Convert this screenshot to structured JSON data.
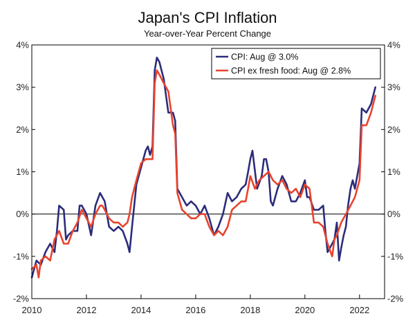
{
  "chart_data": {
    "type": "line",
    "title": "Japan's CPI Inflation",
    "subtitle": "Year-over-Year Percent Change",
    "xlabel": "",
    "ylabel": "",
    "xlim": [
      2010.0,
      2022.917
    ],
    "ylim": [
      -2,
      4
    ],
    "x_ticks": [
      2010,
      2012,
      2014,
      2016,
      2018,
      2020,
      2022
    ],
    "x_tick_labels": [
      "2010",
      "2012",
      "2014",
      "2016",
      "2018",
      "2020",
      "2022"
    ],
    "y_ticks": [
      -2,
      -1,
      0,
      1,
      2,
      3,
      4
    ],
    "y_tick_labels_left": [
      "-2%",
      "-1%",
      "0%",
      "1%",
      "2%",
      "3%",
      "4%"
    ],
    "y_tick_labels_right": [
      "-2%",
      "-1%",
      "0%",
      "1%",
      "2%",
      "3%",
      "4%"
    ],
    "zero_line": true,
    "legend_position": "top-right",
    "series": [
      {
        "name": "CPI: Aug @ 3.0%",
        "color": "#2b2c7a",
        "points": [
          [
            2010.0,
            -1.5
          ],
          [
            2010.17,
            -1.1
          ],
          [
            2010.33,
            -1.2
          ],
          [
            2010.5,
            -0.9
          ],
          [
            2010.67,
            -0.7
          ],
          [
            2010.83,
            -0.9
          ],
          [
            2010.92,
            -0.4
          ],
          [
            2011.0,
            0.2
          ],
          [
            2011.17,
            0.1
          ],
          [
            2011.25,
            -0.6
          ],
          [
            2011.33,
            -0.5
          ],
          [
            2011.5,
            -0.4
          ],
          [
            2011.67,
            -0.4
          ],
          [
            2011.75,
            0.2
          ],
          [
            2011.83,
            0.2
          ],
          [
            2012.0,
            0.0
          ],
          [
            2012.17,
            -0.5
          ],
          [
            2012.33,
            0.2
          ],
          [
            2012.5,
            0.5
          ],
          [
            2012.67,
            0.3
          ],
          [
            2012.83,
            -0.3
          ],
          [
            2013.0,
            -0.4
          ],
          [
            2013.17,
            -0.3
          ],
          [
            2013.33,
            -0.4
          ],
          [
            2013.5,
            -0.7
          ],
          [
            2013.58,
            -0.9
          ],
          [
            2013.67,
            -0.3
          ],
          [
            2013.83,
            0.7
          ],
          [
            2014.0,
            1.1
          ],
          [
            2014.17,
            1.5
          ],
          [
            2014.25,
            1.6
          ],
          [
            2014.33,
            1.4
          ],
          [
            2014.42,
            1.6
          ],
          [
            2014.5,
            3.4
          ],
          [
            2014.58,
            3.7
          ],
          [
            2014.67,
            3.6
          ],
          [
            2014.75,
            3.4
          ],
          [
            2014.83,
            3.2
          ],
          [
            2015.0,
            2.4
          ],
          [
            2015.17,
            2.4
          ],
          [
            2015.25,
            2.2
          ],
          [
            2015.33,
            0.6
          ],
          [
            2015.5,
            0.4
          ],
          [
            2015.67,
            0.2
          ],
          [
            2015.83,
            0.3
          ],
          [
            2016.0,
            0.2
          ],
          [
            2016.17,
            0.0
          ],
          [
            2016.33,
            0.2
          ],
          [
            2016.5,
            -0.1
          ],
          [
            2016.67,
            -0.5
          ],
          [
            2016.83,
            -0.3
          ],
          [
            2017.0,
            0.0
          ],
          [
            2017.17,
            0.5
          ],
          [
            2017.33,
            0.3
          ],
          [
            2017.5,
            0.4
          ],
          [
            2017.67,
            0.6
          ],
          [
            2017.83,
            0.7
          ],
          [
            2017.92,
            1.0
          ],
          [
            2018.0,
            1.3
          ],
          [
            2018.08,
            1.5
          ],
          [
            2018.25,
            0.6
          ],
          [
            2018.42,
            0.9
          ],
          [
            2018.5,
            1.3
          ],
          [
            2018.58,
            1.3
          ],
          [
            2018.67,
            1.0
          ],
          [
            2018.75,
            0.3
          ],
          [
            2018.83,
            0.2
          ],
          [
            2019.0,
            0.6
          ],
          [
            2019.17,
            0.9
          ],
          [
            2019.33,
            0.7
          ],
          [
            2019.5,
            0.3
          ],
          [
            2019.67,
            0.3
          ],
          [
            2019.83,
            0.5
          ],
          [
            2020.0,
            0.8
          ],
          [
            2020.08,
            0.4
          ],
          [
            2020.17,
            0.4
          ],
          [
            2020.33,
            0.1
          ],
          [
            2020.5,
            0.1
          ],
          [
            2020.67,
            0.2
          ],
          [
            2020.75,
            -0.4
          ],
          [
            2020.83,
            -0.9
          ],
          [
            2021.0,
            -0.7
          ],
          [
            2021.08,
            -0.6
          ],
          [
            2021.17,
            -0.2
          ],
          [
            2021.25,
            -1.1
          ],
          [
            2021.33,
            -0.8
          ],
          [
            2021.42,
            -0.5
          ],
          [
            2021.5,
            -0.3
          ],
          [
            2021.58,
            0.2
          ],
          [
            2021.67,
            0.6
          ],
          [
            2021.75,
            0.8
          ],
          [
            2021.83,
            0.6
          ],
          [
            2022.0,
            1.2
          ],
          [
            2022.08,
            2.5
          ],
          [
            2022.25,
            2.4
          ],
          [
            2022.42,
            2.6
          ],
          [
            2022.58,
            3.0
          ]
        ]
      },
      {
        "name": "CPI ex fresh food: Aug @ 2.8%",
        "color": "#e8432d",
        "points": [
          [
            2010.0,
            -1.3
          ],
          [
            2010.17,
            -1.2
          ],
          [
            2010.25,
            -1.5
          ],
          [
            2010.33,
            -1.1
          ],
          [
            2010.5,
            -1.0
          ],
          [
            2010.67,
            -1.1
          ],
          [
            2010.83,
            -0.6
          ],
          [
            2011.0,
            -0.4
          ],
          [
            2011.17,
            -0.7
          ],
          [
            2011.33,
            -0.7
          ],
          [
            2011.5,
            -0.4
          ],
          [
            2011.67,
            -0.2
          ],
          [
            2011.83,
            0.1
          ],
          [
            2012.0,
            -0.1
          ],
          [
            2012.17,
            -0.3
          ],
          [
            2012.33,
            0.0
          ],
          [
            2012.5,
            0.2
          ],
          [
            2012.58,
            0.2
          ],
          [
            2012.67,
            0.1
          ],
          [
            2012.83,
            -0.1
          ],
          [
            2013.0,
            -0.2
          ],
          [
            2013.17,
            -0.2
          ],
          [
            2013.33,
            -0.3
          ],
          [
            2013.5,
            -0.2
          ],
          [
            2013.58,
            0.0
          ],
          [
            2013.67,
            0.4
          ],
          [
            2013.83,
            0.8
          ],
          [
            2014.0,
            1.2
          ],
          [
            2014.17,
            1.3
          ],
          [
            2014.25,
            1.3
          ],
          [
            2014.42,
            1.3
          ],
          [
            2014.5,
            3.1
          ],
          [
            2014.58,
            3.4
          ],
          [
            2014.67,
            3.3
          ],
          [
            2014.83,
            3.1
          ],
          [
            2015.0,
            2.9
          ],
          [
            2015.17,
            2.1
          ],
          [
            2015.25,
            1.9
          ],
          [
            2015.33,
            0.5
          ],
          [
            2015.5,
            0.1
          ],
          [
            2015.67,
            0.0
          ],
          [
            2015.83,
            -0.1
          ],
          [
            2016.0,
            -0.1
          ],
          [
            2016.17,
            0.0
          ],
          [
            2016.33,
            0.0
          ],
          [
            2016.5,
            -0.3
          ],
          [
            2016.67,
            -0.5
          ],
          [
            2016.83,
            -0.4
          ],
          [
            2017.0,
            -0.5
          ],
          [
            2017.17,
            -0.3
          ],
          [
            2017.33,
            0.1
          ],
          [
            2017.5,
            0.2
          ],
          [
            2017.67,
            0.3
          ],
          [
            2017.83,
            0.3
          ],
          [
            2017.92,
            0.6
          ],
          [
            2018.0,
            0.9
          ],
          [
            2018.17,
            0.6
          ],
          [
            2018.33,
            0.8
          ],
          [
            2018.5,
            0.9
          ],
          [
            2018.67,
            1.0
          ],
          [
            2018.83,
            0.8
          ],
          [
            2019.0,
            0.7
          ],
          [
            2019.17,
            0.8
          ],
          [
            2019.33,
            0.6
          ],
          [
            2019.5,
            0.5
          ],
          [
            2019.67,
            0.6
          ],
          [
            2019.83,
            0.4
          ],
          [
            2020.0,
            0.7
          ],
          [
            2020.17,
            0.6
          ],
          [
            2020.33,
            -0.2
          ],
          [
            2020.5,
            -0.2
          ],
          [
            2020.67,
            -0.3
          ],
          [
            2020.83,
            -0.7
          ],
          [
            2021.0,
            -1.0
          ],
          [
            2021.08,
            -0.6
          ],
          [
            2021.17,
            -0.5
          ],
          [
            2021.33,
            -0.2
          ],
          [
            2021.5,
            0.0
          ],
          [
            2021.67,
            0.2
          ],
          [
            2021.83,
            0.4
          ],
          [
            2022.0,
            0.8
          ],
          [
            2022.08,
            2.1
          ],
          [
            2022.25,
            2.1
          ],
          [
            2022.42,
            2.4
          ],
          [
            2022.58,
            2.8
          ]
        ]
      }
    ]
  }
}
